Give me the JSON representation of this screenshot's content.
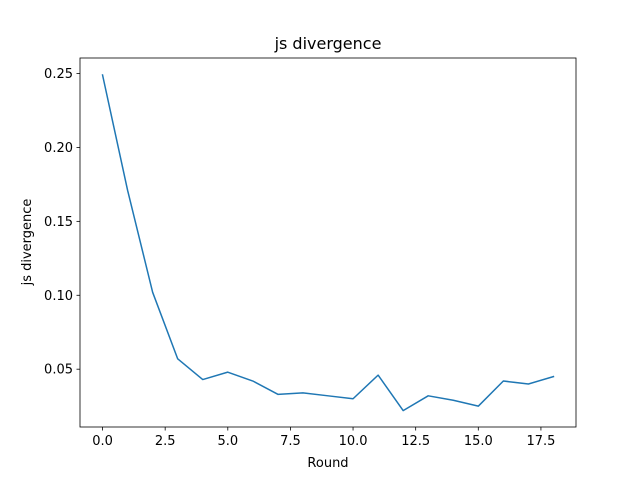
{
  "chart_data": {
    "type": "line",
    "title": "js divergence",
    "xlabel": "Round",
    "ylabel": "js divergence",
    "xlim": [
      -0.9,
      18.9
    ],
    "ylim": [
      0.0109,
      0.2605
    ],
    "grid": false,
    "xticks": [
      0.0,
      2.5,
      5.0,
      7.5,
      10.0,
      12.5,
      15.0,
      17.5
    ],
    "xtick_labels": [
      "0.0",
      "2.5",
      "5.0",
      "7.5",
      "10.0",
      "12.5",
      "15.0",
      "17.5"
    ],
    "yticks": [
      0.05,
      0.1,
      0.15,
      0.2,
      0.25
    ],
    "ytick_labels": [
      "0.05",
      "0.10",
      "0.15",
      "0.20",
      "0.25"
    ],
    "series": [
      {
        "color": "#1f77b4",
        "x": [
          0,
          1,
          2,
          3,
          4,
          5,
          6,
          7,
          8,
          9,
          10,
          11,
          12,
          13,
          14,
          15,
          16,
          17,
          18
        ],
        "y": [
          0.249,
          0.171,
          0.102,
          0.057,
          0.043,
          0.048,
          0.042,
          0.033,
          0.034,
          0.032,
          0.03,
          0.046,
          0.022,
          0.032,
          0.029,
          0.025,
          0.042,
          0.04,
          0.045
        ]
      }
    ]
  }
}
